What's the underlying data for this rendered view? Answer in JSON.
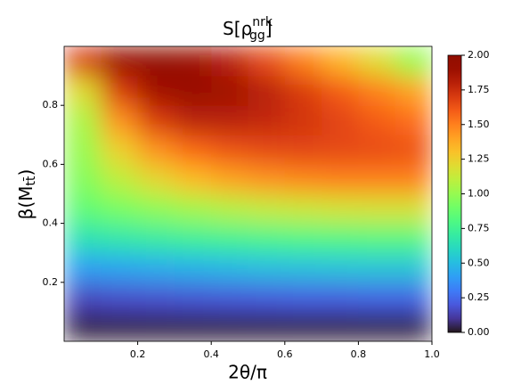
{
  "chart_data": {
    "type": "heatmap",
    "title": [
      "S[ρ",
      "nrk",
      "gg",
      "]"
    ],
    "xlabel": "2θ/π",
    "ylabel": [
      "β(M",
      "tt̄",
      ")"
    ],
    "x": [
      0.05,
      0.15,
      0.25,
      0.35,
      0.45,
      0.55,
      0.65,
      0.75,
      0.85,
      0.95
    ],
    "y": [
      0.05,
      0.15,
      0.25,
      0.35,
      0.45,
      0.55,
      0.65,
      0.75,
      0.85,
      0.95
    ],
    "z": [
      [
        0.02,
        0.02,
        0.02,
        0.02,
        0.02,
        0.02,
        0.02,
        0.02,
        0.02,
        0.02
      ],
      [
        0.15,
        0.17,
        0.18,
        0.19,
        0.2,
        0.21,
        0.22,
        0.22,
        0.23,
        0.23
      ],
      [
        0.4,
        0.42,
        0.44,
        0.46,
        0.48,
        0.5,
        0.51,
        0.52,
        0.53,
        0.53
      ],
      [
        0.65,
        0.68,
        0.71,
        0.74,
        0.76,
        0.78,
        0.8,
        0.81,
        0.82,
        0.82
      ],
      [
        0.85,
        0.92,
        0.98,
        1.03,
        1.08,
        1.12,
        1.14,
        1.16,
        1.17,
        1.17
      ],
      [
        0.95,
        1.1,
        1.22,
        1.32,
        1.4,
        1.45,
        1.48,
        1.5,
        1.5,
        1.5
      ],
      [
        1.0,
        1.25,
        1.45,
        1.57,
        1.63,
        1.66,
        1.67,
        1.66,
        1.65,
        1.63
      ],
      [
        1.05,
        1.45,
        1.7,
        1.8,
        1.8,
        1.77,
        1.72,
        1.67,
        1.6,
        1.55
      ],
      [
        1.2,
        1.7,
        1.88,
        1.92,
        1.88,
        1.8,
        1.7,
        1.6,
        1.5,
        1.4
      ],
      [
        1.7,
        1.92,
        1.95,
        1.9,
        1.8,
        1.65,
        1.5,
        1.35,
        1.2,
        1.0
      ]
    ],
    "colormap": "turbo",
    "xlim": [
      0,
      1
    ],
    "ylim": [
      0,
      1
    ],
    "xticks": [
      0.2,
      0.4,
      0.6,
      0.8,
      {
        "value": 1,
        "label": "1.0"
      }
    ],
    "yticks": [
      0.2,
      0.4,
      0.6,
      0.8
    ],
    "clim": [
      0,
      2
    ],
    "cticks": [
      {
        "value": 0,
        "label": "0.00"
      },
      {
        "value": 0.25,
        "label": "0.25"
      },
      {
        "value": 0.5,
        "label": "0.50"
      },
      {
        "value": 0.75,
        "label": "0.75"
      },
      {
        "value": 1,
        "label": "1.00"
      },
      {
        "value": 1.25,
        "label": "1.25"
      },
      {
        "value": 1.5,
        "label": "1.50"
      },
      {
        "value": 1.75,
        "label": "1.75"
      },
      {
        "value": 2,
        "label": "2.00"
      }
    ]
  }
}
